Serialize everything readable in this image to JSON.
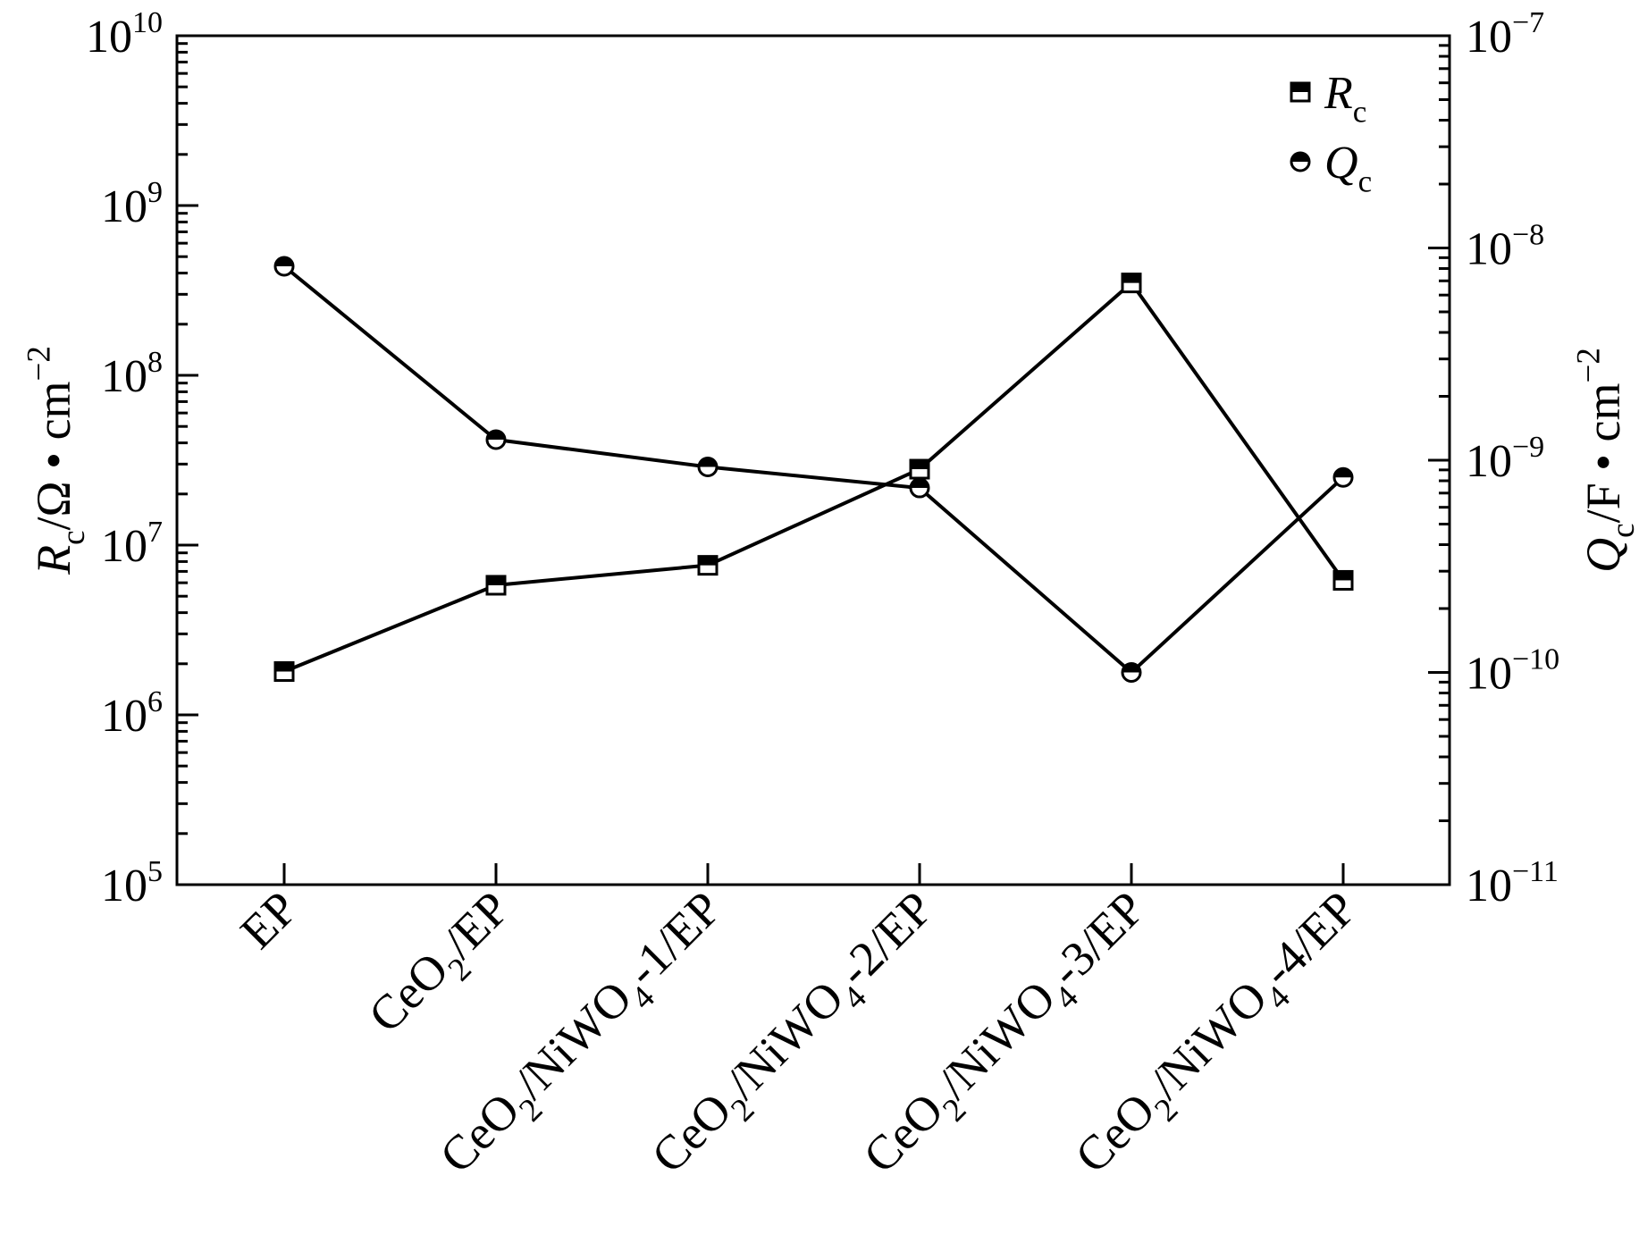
{
  "chart_data": {
    "type": "line",
    "categories": [
      "EP",
      "CeO2/EP",
      "CeO2/NiWO4-1/EP",
      "CeO2/NiWO4-2/EP",
      "CeO2/NiWO4-3/EP",
      "CeO2/NiWO4-4/EP"
    ],
    "category_labels": [
      [
        {
          "t": "EP"
        }
      ],
      [
        {
          "t": "CeO"
        },
        {
          "t": "2",
          "sub": true
        },
        {
          "t": "/EP"
        }
      ],
      [
        {
          "t": "CeO"
        },
        {
          "t": "2",
          "sub": true
        },
        {
          "t": "/NiWO"
        },
        {
          "t": "4",
          "sub": true
        },
        {
          "t": "-1/EP"
        }
      ],
      [
        {
          "t": "CeO"
        },
        {
          "t": "2",
          "sub": true
        },
        {
          "t": "/NiWO"
        },
        {
          "t": "4",
          "sub": true
        },
        {
          "t": "-2/EP"
        }
      ],
      [
        {
          "t": "CeO"
        },
        {
          "t": "2",
          "sub": true
        },
        {
          "t": "/NiWO"
        },
        {
          "t": "4",
          "sub": true
        },
        {
          "t": "-3/EP"
        }
      ],
      [
        {
          "t": "CeO"
        },
        {
          "t": "2",
          "sub": true
        },
        {
          "t": "/NiWO"
        },
        {
          "t": "4",
          "sub": true
        },
        {
          "t": "-4/EP"
        }
      ]
    ],
    "series": [
      {
        "name": "Rc",
        "legend_parts": [
          {
            "t": "R",
            "italic": true
          },
          {
            "t": "c",
            "sub": true
          }
        ],
        "axis": "left",
        "marker": "half-filled-square",
        "values": [
          1800000.0,
          5800000.0,
          7600000.0,
          28000000.0,
          350000000.0,
          6200000.0
        ]
      },
      {
        "name": "Qc",
        "legend_parts": [
          {
            "t": "Q",
            "italic": true
          },
          {
            "t": "c",
            "sub": true
          }
        ],
        "axis": "right",
        "marker": "half-filled-circle",
        "values": [
          8.2e-09,
          1.25e-09,
          9.3e-10,
          7.4e-10,
          1e-10,
          8.3e-10
        ]
      }
    ],
    "y_left": {
      "scale": "log",
      "range": [
        100000.0,
        10000000000.0
      ],
      "tick_labels": [
        {
          "base": "10",
          "exp": "5"
        },
        {
          "base": "10",
          "exp": "6"
        },
        {
          "base": "10",
          "exp": "7"
        },
        {
          "base": "10",
          "exp": "8"
        },
        {
          "base": "10",
          "exp": "9"
        },
        {
          "base": "10",
          "exp": "10"
        }
      ],
      "label_parts": [
        {
          "t": "R",
          "italic": true
        },
        {
          "t": "c",
          "sub": true
        },
        {
          "t": "/Ω • cm"
        },
        {
          "t": "−2",
          "sup": true
        }
      ]
    },
    "y_right": {
      "scale": "log",
      "range": [
        1e-11,
        1e-07
      ],
      "tick_labels": [
        {
          "base": "10",
          "exp": "−11"
        },
        {
          "base": "10",
          "exp": "−10"
        },
        {
          "base": "10",
          "exp": "−9"
        },
        {
          "base": "10",
          "exp": "−8"
        },
        {
          "base": "10",
          "exp": "−7"
        }
      ],
      "label_parts": [
        {
          "t": "Q",
          "italic": true
        },
        {
          "t": "c",
          "sub": true
        },
        {
          "t": "/F • cm"
        },
        {
          "t": "−2",
          "sup": true
        }
      ]
    },
    "grid": false,
    "legend": "top-right",
    "colors": {
      "line": "#000000",
      "marker_fill": "#000000",
      "background": "#ffffff"
    }
  }
}
